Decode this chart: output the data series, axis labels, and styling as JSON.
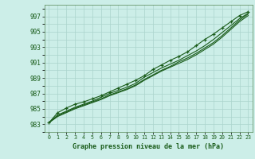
{
  "title": "Graphe pression niveau de la mer (hPa)",
  "xlabel_hours": [
    0,
    1,
    2,
    3,
    4,
    5,
    6,
    7,
    8,
    9,
    10,
    11,
    12,
    13,
    14,
    15,
    16,
    17,
    18,
    19,
    20,
    21,
    22,
    23
  ],
  "yticks": [
    983,
    985,
    987,
    989,
    991,
    993,
    995,
    997
  ],
  "ylim": [
    982.0,
    998.5
  ],
  "xlim": [
    -0.5,
    23.5
  ],
  "background_color": "#cceee8",
  "grid_color": "#aad4cc",
  "line_color": "#1a5c1a",
  "text_color": "#1a5c1a",
  "line1_y": [
    983.2,
    984.0,
    984.5,
    985.0,
    985.4,
    985.8,
    986.2,
    986.7,
    987.1,
    987.5,
    988.0,
    988.7,
    989.3,
    989.9,
    990.4,
    990.9,
    991.4,
    992.0,
    992.7,
    993.4,
    994.3,
    995.3,
    996.3,
    997.1
  ],
  "line2_y": [
    983.2,
    984.1,
    984.6,
    985.1,
    985.5,
    985.9,
    986.3,
    986.8,
    987.2,
    987.6,
    988.1,
    988.8,
    989.4,
    990.0,
    990.5,
    991.1,
    991.6,
    992.2,
    992.9,
    993.6,
    994.5,
    995.5,
    996.5,
    997.3
  ],
  "line3_y": [
    983.2,
    984.2,
    984.7,
    985.2,
    985.6,
    986.0,
    986.5,
    987.0,
    987.4,
    987.8,
    988.3,
    989.1,
    989.7,
    990.3,
    990.8,
    991.3,
    991.9,
    992.5,
    993.2,
    994.0,
    994.9,
    995.8,
    996.7,
    997.4
  ],
  "line_marker_y": [
    983.2,
    984.5,
    985.1,
    985.6,
    985.9,
    986.3,
    986.7,
    987.2,
    987.7,
    988.2,
    988.7,
    989.3,
    990.1,
    990.7,
    991.3,
    991.8,
    992.4,
    993.2,
    994.0,
    994.7,
    995.5,
    996.3,
    997.1,
    997.6
  ]
}
